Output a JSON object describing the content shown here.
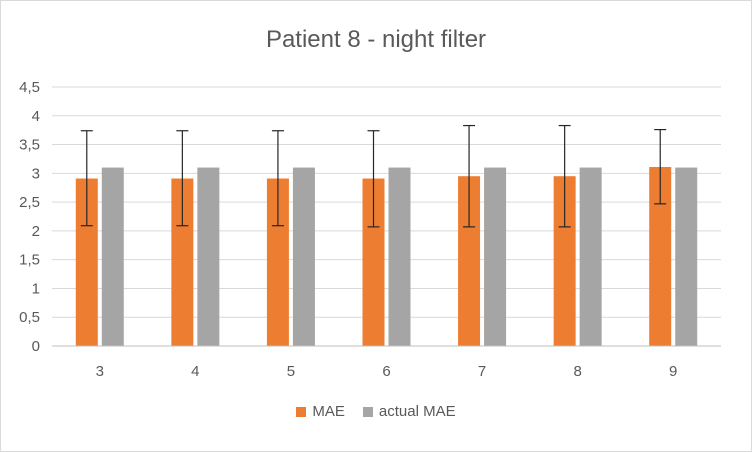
{
  "chart_data": {
    "type": "bar",
    "title": "Patient 8 - night filter",
    "xlabel": "",
    "ylabel": "",
    "categories": [
      "3",
      "4",
      "5",
      "6",
      "7",
      "8",
      "9"
    ],
    "ylim": [
      0,
      4.5
    ],
    "yticks": [
      "0",
      "0,5",
      "1",
      "1,5",
      "2",
      "2,5",
      "3",
      "3,5",
      "4",
      "4,5"
    ],
    "grid": true,
    "legend_position": "bottom",
    "series": [
      {
        "name": "MAE",
        "color": "#ED7D31",
        "values": [
          2.91,
          2.91,
          2.91,
          2.91,
          2.95,
          2.95,
          3.11
        ],
        "error_low": [
          2.09,
          2.09,
          2.09,
          2.07,
          2.07,
          2.07,
          2.47
        ],
        "error_high": [
          3.74,
          3.74,
          3.74,
          3.74,
          3.83,
          3.83,
          3.76
        ]
      },
      {
        "name": "actual MAE",
        "color": "#A5A5A5",
        "values": [
          3.1,
          3.1,
          3.1,
          3.1,
          3.1,
          3.1,
          3.1
        ]
      }
    ]
  }
}
